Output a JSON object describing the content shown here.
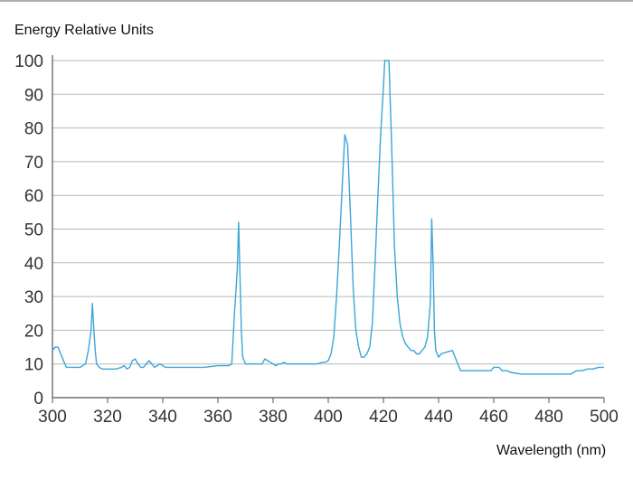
{
  "chart_data": {
    "type": "line",
    "title": "",
    "ylabel": "Energy Relative Units",
    "xlabel": "Wavelength (nm)",
    "xlim": [
      300,
      500
    ],
    "ylim": [
      0,
      100
    ],
    "grid": "horizontal",
    "xticks": [
      300,
      320,
      340,
      360,
      380,
      400,
      420,
      440,
      460,
      480,
      500
    ],
    "yticks": [
      0,
      10,
      20,
      30,
      40,
      50,
      60,
      70,
      80,
      90,
      100
    ],
    "line_color": "#3aa6d6",
    "series": [
      {
        "x": [
          300,
          301,
          302,
          303,
          304,
          305,
          306,
          307,
          310,
          312,
          313,
          314,
          314.5,
          315,
          315.5,
          316,
          317,
          318,
          320,
          323,
          325,
          326,
          327,
          328,
          329,
          330,
          331,
          332,
          333,
          334,
          335,
          336,
          337,
          338,
          339,
          340,
          341,
          343,
          345,
          350,
          355,
          360,
          362,
          364,
          365,
          366,
          367,
          367.5,
          368,
          368.5,
          369,
          370,
          371,
          373,
          375,
          376,
          377,
          378,
          380,
          381,
          382,
          383,
          384,
          385,
          388,
          390,
          394,
          396,
          398,
          399,
          400,
          401,
          402,
          403,
          404,
          405,
          406,
          407,
          408,
          409,
          410,
          411,
          412,
          413,
          414,
          415,
          416,
          417,
          418,
          419,
          420,
          420.5,
          421,
          422,
          423,
          424,
          425,
          426,
          427,
          428,
          429,
          430,
          431,
          432,
          433,
          434,
          435,
          436,
          437,
          437.5,
          438,
          438.5,
          439,
          440,
          441,
          443,
          445,
          447,
          448,
          450,
          453,
          456,
          459,
          460,
          462,
          463,
          465,
          466,
          470,
          475,
          480,
          484,
          488,
          490,
          492,
          494,
          496,
          498,
          500
        ],
        "y": [
          14,
          15,
          15,
          13,
          11,
          9,
          9,
          9,
          9,
          10,
          14,
          20,
          28,
          20,
          14,
          10,
          9,
          8.5,
          8.5,
          8.5,
          9,
          9.5,
          8.5,
          9,
          11,
          11.5,
          10,
          9,
          9,
          10,
          11,
          10,
          9,
          9.5,
          10,
          9.5,
          9,
          9,
          9,
          9,
          9,
          9.5,
          9.5,
          9.5,
          10,
          25,
          38,
          52,
          36,
          20,
          12,
          10,
          10,
          10,
          10,
          10,
          11.5,
          11,
          10,
          9.5,
          10,
          10,
          10.5,
          10,
          10,
          10,
          10,
          10,
          10.5,
          10.5,
          11,
          13,
          18,
          30,
          45,
          62,
          78,
          75,
          55,
          33,
          20,
          15,
          12,
          12,
          13,
          15,
          22,
          40,
          60,
          78,
          92,
          100,
          100,
          100,
          75,
          45,
          30,
          22,
          18,
          16,
          15,
          14,
          14,
          13,
          13,
          14,
          15,
          18,
          28,
          53,
          40,
          20,
          14,
          12,
          13,
          13.5,
          14,
          10,
          8,
          8,
          8,
          8,
          8,
          9,
          9,
          8,
          8,
          7.5,
          7,
          7,
          7,
          7,
          7,
          8,
          8,
          8.5,
          8.5,
          9,
          9
        ]
      }
    ]
  }
}
